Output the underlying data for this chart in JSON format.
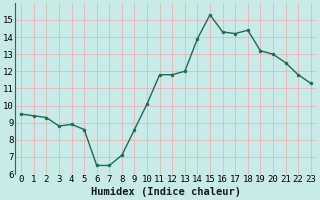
{
  "x": [
    0,
    1,
    2,
    3,
    4,
    5,
    6,
    7,
    8,
    9,
    10,
    11,
    12,
    13,
    14,
    15,
    16,
    17,
    18,
    19,
    20,
    21,
    22,
    23
  ],
  "y": [
    9.5,
    9.4,
    9.3,
    8.8,
    8.9,
    8.6,
    6.5,
    6.5,
    7.1,
    8.6,
    10.1,
    11.8,
    11.8,
    12.0,
    13.9,
    15.3,
    14.3,
    14.2,
    14.4,
    13.2,
    13.0,
    12.5,
    11.8,
    11.3
  ],
  "line_color": "#1a6b5a",
  "marker": "o",
  "markersize": 2.0,
  "linewidth": 1.0,
  "bg_color": "#c8eae8",
  "grid_color": "#e8b4b8",
  "xlabel": "Humidex (Indice chaleur)",
  "ylabel": "",
  "ylim": [
    6,
    16
  ],
  "xlim": [
    -0.5,
    23.5
  ],
  "yticks": [
    6,
    7,
    8,
    9,
    10,
    11,
    12,
    13,
    14,
    15
  ],
  "xticks": [
    0,
    1,
    2,
    3,
    4,
    5,
    6,
    7,
    8,
    9,
    10,
    11,
    12,
    13,
    14,
    15,
    16,
    17,
    18,
    19,
    20,
    21,
    22,
    23
  ],
  "xtick_labels": [
    "0",
    "1",
    "2",
    "3",
    "4",
    "5",
    "6",
    "7",
    "8",
    "9",
    "10",
    "11",
    "12",
    "13",
    "14",
    "15",
    "16",
    "17",
    "18",
    "19",
    "20",
    "21",
    "22",
    "23"
  ],
  "tick_fontsize": 6.5,
  "label_fontsize": 7.5,
  "spine_color": "#555555"
}
